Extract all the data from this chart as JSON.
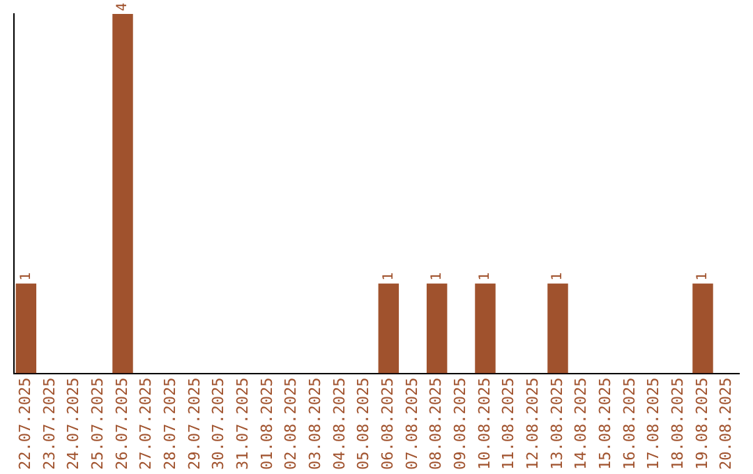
{
  "chart_data": {
    "type": "bar",
    "categories": [
      "22.07.2025",
      "23.07.2025",
      "24.07.2025",
      "25.07.2025",
      "26.07.2025",
      "27.07.2025",
      "28.07.2025",
      "29.07.2025",
      "30.07.2025",
      "31.07.2025",
      "01.08.2025",
      "02.08.2025",
      "03.08.2025",
      "04.08.2025",
      "05.08.2025",
      "06.08.2025",
      "07.08.2025",
      "08.08.2025",
      "09.08.2025",
      "10.08.2025",
      "11.08.2025",
      "12.08.2025",
      "13.08.2025",
      "14.08.2025",
      "15.08.2025",
      "16.08.2025",
      "17.08.2025",
      "18.08.2025",
      "19.08.2025",
      "20.08.2025"
    ],
    "values": [
      1,
      0,
      0,
      0,
      4,
      0,
      0,
      0,
      0,
      0,
      0,
      0,
      0,
      0,
      0,
      1,
      0,
      1,
      0,
      1,
      0,
      0,
      1,
      0,
      0,
      0,
      0,
      0,
      1,
      0
    ],
    "value_labels": [
      "1",
      null,
      null,
      null,
      "4",
      null,
      null,
      null,
      null,
      null,
      null,
      null,
      null,
      null,
      null,
      "1",
      null,
      "1",
      null,
      "1",
      null,
      null,
      "1",
      null,
      null,
      null,
      null,
      null,
      "1",
      null
    ],
    "color": "#a0522d",
    "grid": false,
    "legend": false,
    "tick_labels": "x"
  }
}
